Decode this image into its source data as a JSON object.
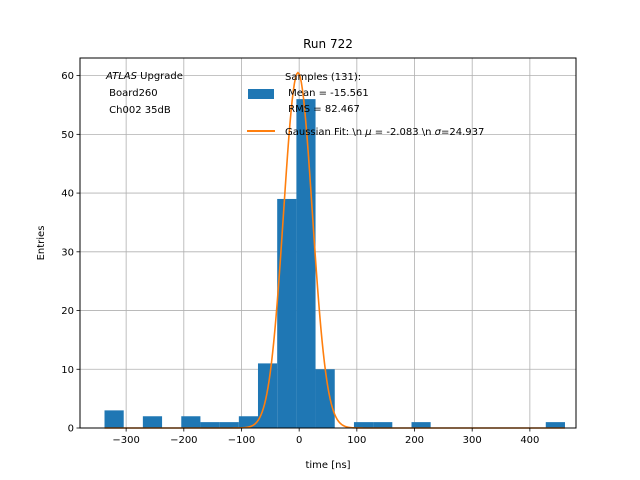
{
  "chart_data": {
    "type": "bar",
    "title": "Run 722",
    "xlabel": "time [ns]",
    "ylabel": "Entries",
    "xlim": [
      -380,
      480
    ],
    "ylim": [
      0,
      63
    ],
    "grid": true,
    "legend_position": "top-right",
    "xticks": [
      -300,
      -200,
      -100,
      0,
      100,
      200,
      300,
      400
    ],
    "xtick_labels": [
      "−300",
      "−200",
      "−100",
      "0",
      "100",
      "200",
      "300",
      "400"
    ],
    "yticks": [
      0,
      10,
      20,
      30,
      40,
      50,
      60
    ],
    "ytick_labels": [
      "0",
      "10",
      "20",
      "30",
      "40",
      "50",
      "60"
    ],
    "annotation": {
      "line1_italic": "ATLAS",
      "line1_rest": " Upgrade",
      "line2": " Board260",
      "line3": " Ch002 35dB"
    },
    "histogram": {
      "name": "Samples (131):",
      "name_line2": " Mean = -15.561",
      "name_line3": " RMS = 82.467",
      "color": "#1f77b4",
      "bin_edges": [
        -337.5,
        -304.2,
        -271,
        -237.7,
        -204.4,
        -171.2,
        -137.9,
        -104.6,
        -71.4,
        -38.1,
        -4.8,
        28.4,
        61.7,
        95,
        128.2,
        161.5,
        194.8,
        228,
        261.3,
        294.6,
        327.8,
        361.1,
        394.4,
        427.6,
        460.9
      ],
      "counts": [
        3,
        0,
        2,
        0,
        2,
        1,
        1,
        2,
        11,
        39,
        56,
        10,
        0,
        1,
        1,
        0,
        1,
        0,
        0,
        0,
        0,
        0,
        0,
        1
      ]
    },
    "fit": {
      "name": "Gaussian Fit: \\n $\\mu$ = -2.083 \\n $\\sigma$=24.937",
      "legend_prefix": "Gaussian Fit: \\n ",
      "legend_mu_symbol": "μ",
      "legend_mid": " = -2.083 \\n ",
      "legend_sigma_symbol": "σ",
      "legend_suffix": "=24.937",
      "color": "#ff7f0e",
      "mu": -2.083,
      "sigma": 24.937,
      "amplitude": 60.5
    }
  }
}
